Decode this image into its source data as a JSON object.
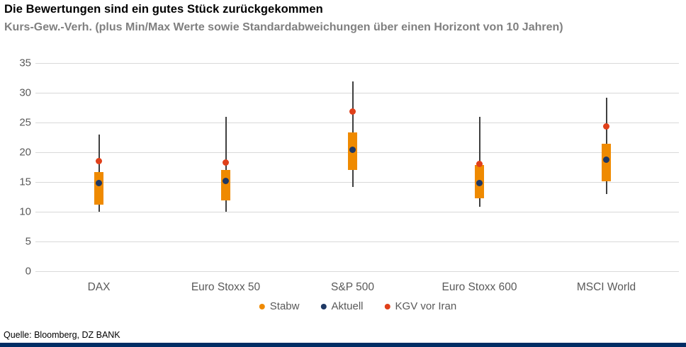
{
  "header": {
    "title": "Die Bewertungen sind ein gutes Stück zurückgekommen",
    "subtitle": "Kurs-Gew.-Verh. (plus Min/Max Werte sowie Standardabweichungen über einen Horizont von 10 Jahren)"
  },
  "chart_data": {
    "type": "boxplot",
    "title": "Kurs-Gew.-Verh. (plus Min/Max Werte sowie Standardabweichungen über einen Horizont von 10 Jahren)",
    "categories": [
      "DAX",
      "Euro Stoxx 50",
      "S&P 500",
      "Euro Stoxx 600",
      "MSCI World"
    ],
    "series": [
      {
        "name": "DAX",
        "min": 10.0,
        "max": 23.0,
        "stdev_low": 11.2,
        "stdev_high": 16.7,
        "aktuell": 14.8,
        "kgv_vor_iran": 18.5
      },
      {
        "name": "Euro Stoxx 50",
        "min": 10.0,
        "max": 26.0,
        "stdev_low": 11.9,
        "stdev_high": 17.0,
        "aktuell": 15.2,
        "kgv_vor_iran": 18.3
      },
      {
        "name": "S&P 500",
        "min": 14.2,
        "max": 31.9,
        "stdev_low": 17.0,
        "stdev_high": 23.3,
        "aktuell": 20.4,
        "kgv_vor_iran": 26.8
      },
      {
        "name": "Euro Stoxx 600",
        "min": 10.8,
        "max": 25.9,
        "stdev_low": 12.3,
        "stdev_high": 17.9,
        "aktuell": 14.8,
        "kgv_vor_iran": 18.1
      },
      {
        "name": "MSCI World",
        "min": 13.0,
        "max": 29.2,
        "stdev_low": 15.1,
        "stdev_high": 21.4,
        "aktuell": 18.8,
        "kgv_vor_iran": 24.3
      }
    ],
    "ylim": [
      0,
      35
    ],
    "yticks": [
      35,
      30,
      25,
      20,
      15,
      10,
      5,
      0
    ],
    "grid": true,
    "legend_position": "bottom",
    "legend": [
      {
        "label": "Stabw",
        "color": "#ef8a00",
        "marker": "stdev-band"
      },
      {
        "label": "Aktuell",
        "color": "#1f3864",
        "marker": "current-dot"
      },
      {
        "label": "KGV vor Iran",
        "color": "#e0401a",
        "marker": "pre-iran-dot"
      }
    ],
    "colors": {
      "stdev_band": "#ef8a00",
      "aktuell_dot": "#1f3864",
      "kgv_dot": "#e0401a",
      "whisker": "#404040",
      "gridline": "#d9d9d9",
      "axis_text": "#595959"
    }
  },
  "footer": {
    "source": "Quelle: Bloomberg, DZ BANK"
  }
}
